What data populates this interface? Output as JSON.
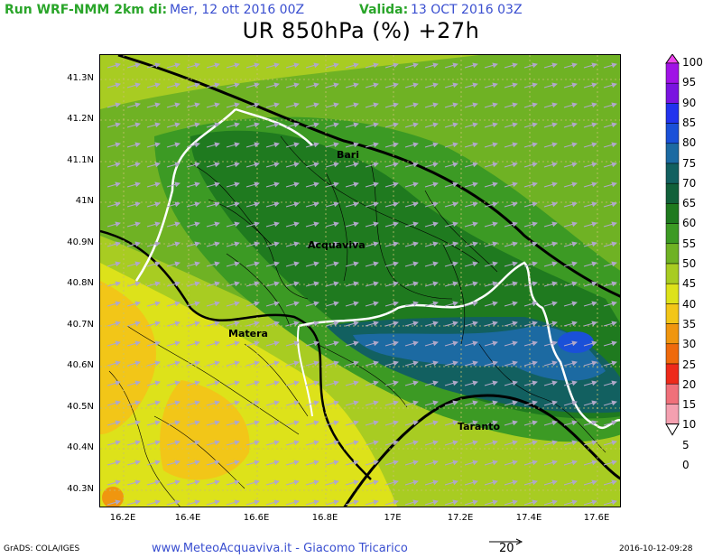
{
  "header": {
    "run_label": "Run WRF-NMM 2km di:",
    "run_value": "Mer, 12 ott 2016 00Z",
    "valid_label": "Valida:",
    "valid_value": "13 OCT 2016 03Z"
  },
  "title": "UR 850hPa (%) +27h",
  "map": {
    "y_ticks": [
      "41.3N",
      "41.2N",
      "41.1N",
      "41N",
      "40.9N",
      "40.8N",
      "40.7N",
      "40.6N",
      "40.5N",
      "40.4N",
      "40.3N"
    ],
    "x_ticks": [
      "16.2E",
      "16.4E",
      "16.6E",
      "16.8E",
      "17E",
      "17.2E",
      "17.4E",
      "17.6E"
    ],
    "cities": [
      "Bari",
      "Acquaviva",
      "Matera",
      "Taranto"
    ]
  },
  "colorbar": {
    "labels": [
      "100",
      "95",
      "90",
      "85",
      "80",
      "75",
      "70",
      "65",
      "60",
      "55",
      "50",
      "45",
      "40",
      "35",
      "30",
      "25",
      "20",
      "15",
      "10",
      "5",
      "0"
    ],
    "colors": [
      "#ee44ee",
      "#a012e6",
      "#7a14e0",
      "#2233ee",
      "#1a50d8",
      "#1c6aa2",
      "#126060",
      "#11603a",
      "#1f7a1f",
      "#3c9a24",
      "#6fb224",
      "#a8cc22",
      "#dde21a",
      "#f2c618",
      "#f0960f",
      "#ef6a0c",
      "#ee2a1a",
      "#f0707a",
      "#f4a0b0",
      "#f8ccd6"
    ]
  },
  "footer": {
    "left": "GrADS: COLA/IGES",
    "middle": "www.MeteoAcquaviva.it - Giacomo Tricarico",
    "ref_vector": "20",
    "right": "2016-10-12-09:28"
  }
}
